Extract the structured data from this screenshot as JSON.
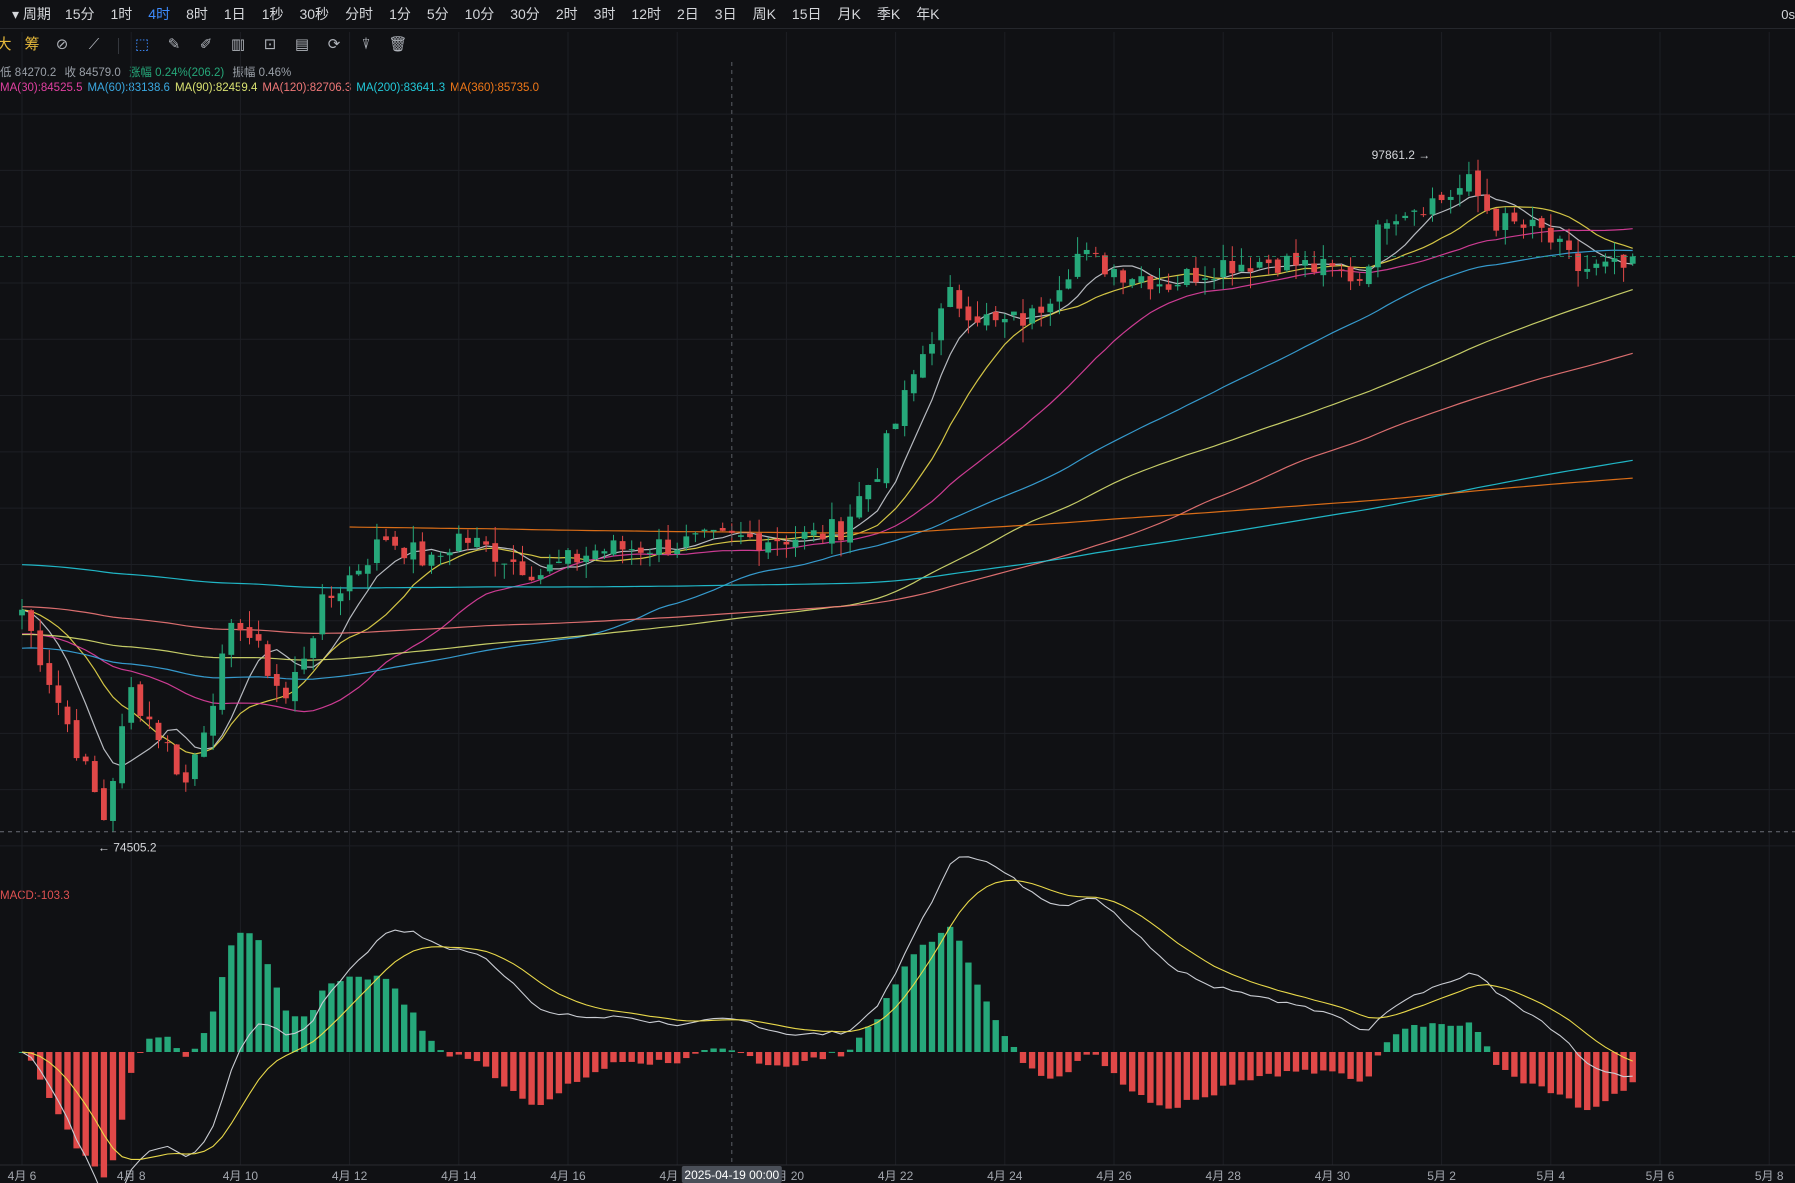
{
  "toolbar": {
    "period_label": "周期",
    "timeframes": [
      "15分",
      "1时",
      "4时",
      "8时",
      "1日",
      "1秒",
      "30秒",
      "分时",
      "1分",
      "5分",
      "10分",
      "30分",
      "2时",
      "3时",
      "12时",
      "2日",
      "3日",
      "周K",
      "15日",
      "月K",
      "季K",
      "年K"
    ],
    "active_timeframe": "4时",
    "right_text": "0s",
    "tool_labels": [
      "大",
      "筹"
    ]
  },
  "ohlc": {
    "low_label": "低 84270.2",
    "close_label": "收 84579.0",
    "change_label": "涨幅 0.24%(206.2)",
    "amplitude_label": "振幅 0.46%"
  },
  "ma_legend": [
    {
      "label": "MA(30):84525.5",
      "color": "#e040a0"
    },
    {
      "label": "MA(60):83138.6",
      "color": "#3aa8e0"
    },
    {
      "label": "MA(90):82459.4",
      "color": "#d8e070"
    },
    {
      "label": "MA(120):82706.3",
      "color": "#f07878"
    },
    {
      "label": "MA(200):83641.3",
      "color": "#22c8d8"
    },
    {
      "label": "MA(360):85735.0",
      "color": "#f07818"
    }
  ],
  "macd_label": "MACD:-103.3",
  "colors": {
    "up": "#26a87a",
    "down": "#e04848",
    "background": "#101114"
  },
  "chart_data": {
    "type": "candlestick",
    "interval": "4h",
    "x_axis_labels": [
      "4月 6",
      "4月 8",
      "4月 10",
      "4月 12",
      "4月 14",
      "4月 16",
      "4月 18",
      "4月 20",
      "4月 22",
      "4月 24",
      "4月 26",
      "4月 28",
      "4月 30",
      "5月 2",
      "5月 4",
      "5月 6",
      "5月 8"
    ],
    "crosshair_label": "2025-04-19 00:00",
    "price_range": [
      73500,
      100500
    ],
    "annotations": {
      "high": "97861.2",
      "low": "74505.2"
    },
    "close_path": [
      [
        "2025-04-06",
        82400
      ],
      [
        "2025-04-07",
        77500
      ],
      [
        "2025-04-07 12:00",
        75000
      ],
      [
        "2025-04-08",
        79500
      ],
      [
        "2025-04-08 16:00",
        77500
      ],
      [
        "2025-04-09",
        76200
      ],
      [
        "2025-04-09 20:00",
        81500
      ],
      [
        "2025-04-10",
        82000
      ],
      [
        "2025-04-10 20:00",
        79200
      ],
      [
        "2025-04-11 12:00",
        82500
      ],
      [
        "2025-04-12 16:00",
        85000
      ],
      [
        "2025-04-13 12:00",
        84000
      ],
      [
        "2025-04-14",
        85000
      ],
      [
        "2025-04-15 12:00",
        83700
      ],
      [
        "2025-04-16 12:00",
        84500
      ],
      [
        "2025-04-17 20:00",
        84700
      ],
      [
        "2025-04-19 00:00",
        84900
      ],
      [
        "2025-04-20 12:00",
        85000
      ],
      [
        "2025-04-21",
        85300
      ],
      [
        "2025-04-21 16:00",
        87400
      ],
      [
        "2025-04-22 12:00",
        91500
      ],
      [
        "2025-04-23",
        93500
      ],
      [
        "2025-04-23 20:00",
        92500
      ],
      [
        "2025-04-24 12:00",
        92800
      ],
      [
        "2025-04-25 08:00",
        95000
      ],
      [
        "2025-04-26",
        94500
      ],
      [
        "2025-04-27",
        94000
      ],
      [
        "2025-04-28",
        94700
      ],
      [
        "2025-04-29",
        94800
      ],
      [
        "2025-04-30 12:00",
        94200
      ],
      [
        "2025-05-01",
        96500
      ],
      [
        "2025-05-02",
        97000
      ],
      [
        "2025-05-02 12:00",
        97500
      ],
      [
        "2025-05-03",
        96200
      ],
      [
        "2025-05-03 20:00",
        95800
      ],
      [
        "2025-05-04 12:00",
        94500
      ],
      [
        "2025-05-05",
        94500
      ]
    ],
    "ma_end_values": {
      "MA(30)": 84525.5,
      "MA(60)": 83138.6,
      "MA(90)": 82459.4,
      "MA(120)": 82706.3,
      "MA(200)": 83641.3,
      "MA(360)": 85735.0
    }
  }
}
